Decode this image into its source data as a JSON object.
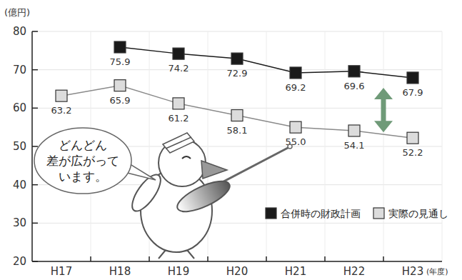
{
  "chart_data": {
    "type": "line",
    "y_label": "(億円)",
    "x_label": "(年度)",
    "annotation": [
      "どんどん",
      "差が広がって",
      "います。"
    ],
    "categories": [
      "H17",
      "H18",
      "H19",
      "H20",
      "H21",
      "H22",
      "H23"
    ],
    "series": [
      {
        "name": "合併時の財政計画",
        "color": "#1a1a1a",
        "marker": "square",
        "line_style": "solid",
        "values": [
          null,
          75.9,
          74.2,
          72.9,
          69.2,
          69.6,
          67.9
        ],
        "value_labels": [
          null,
          "75.9",
          "74.2",
          "72.9",
          "69.2",
          "69.6",
          "67.9"
        ]
      },
      {
        "name": "実際の見通し",
        "color": "#dcdcdc",
        "marker": "square",
        "line_style": "solid",
        "values": [
          63.2,
          65.9,
          61.2,
          58.1,
          55.0,
          54.1,
          52.2
        ],
        "value_labels": [
          "63.2",
          "65.9",
          "61.2",
          "58.1",
          "55.0",
          "54.1",
          "52.2"
        ]
      }
    ],
    "ylim": [
      20,
      80
    ],
    "yticks": [
      20,
      30,
      40,
      50,
      60,
      70,
      80
    ],
    "grid": true,
    "data_labels": true,
    "legend": "lower right"
  }
}
